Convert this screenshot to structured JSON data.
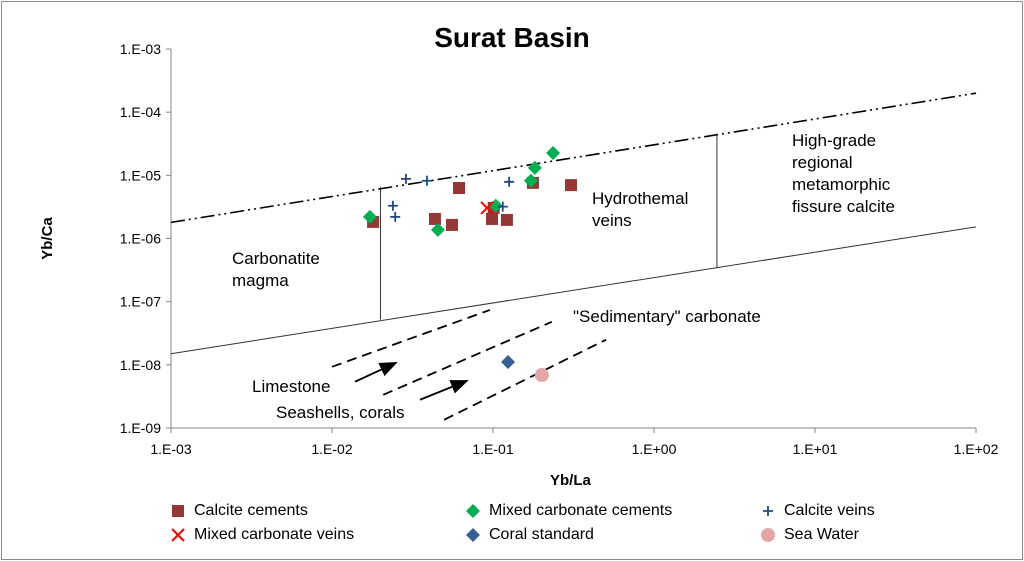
{
  "chart_data": {
    "type": "scatter",
    "title": "Surat Basin",
    "xlabel": "Yb/La",
    "ylabel": "Yb/Ca",
    "x_scale": "log",
    "y_scale": "log",
    "xlim": [
      0.001,
      100
    ],
    "ylim": [
      1e-09,
      0.001
    ],
    "x_ticks": [
      "1.E-03",
      "1.E-02",
      "1.E-01",
      "1.E+00",
      "1.E+01",
      "1.E+02"
    ],
    "y_ticks": [
      "1.E-09",
      "1.E-08",
      "1.E-07",
      "1.E-06",
      "1.E-05",
      "1.E-04",
      "1.E-03"
    ],
    "grid": false,
    "legend_position": "bottom",
    "series": [
      {
        "name": "Calcite cements",
        "marker": "square",
        "color": "#953735",
        "points": [
          [
            0.018,
            1.83e-06
          ],
          [
            0.0436,
            2.04e-06
          ],
          [
            0.0556,
            1.64e-06
          ],
          [
            0.0615,
            6.3e-06
          ],
          [
            0.0986,
            2.04e-06
          ],
          [
            0.101,
            3.05e-06
          ],
          [
            0.122,
            1.97e-06
          ],
          [
            0.177,
            7.6e-06
          ],
          [
            0.305,
            7e-06
          ]
        ]
      },
      {
        "name": "Mixed carbonate cements",
        "marker": "diamond",
        "color": "#00B050",
        "points": [
          [
            0.0172,
            2.2e-06
          ],
          [
            0.0455,
            1.37e-06
          ],
          [
            0.104,
            3.3e-06
          ],
          [
            0.172,
            8.2e-06
          ],
          [
            0.182,
            1.31e-05
          ],
          [
            0.236,
            2.26e-05
          ]
        ]
      },
      {
        "name": "Calcite veins",
        "marker": "plus",
        "color": "#1F497D",
        "points": [
          [
            0.0288,
            8.8e-06
          ],
          [
            0.0389,
            8.2e-06
          ],
          [
            0.0239,
            3.3e-06
          ],
          [
            0.0247,
            2.2e-06
          ],
          [
            0.126,
            7.9e-06
          ],
          [
            0.115,
            3.2e-06
          ]
        ]
      },
      {
        "name": "Mixed carbonate veins",
        "marker": "x",
        "color": "#FF0000",
        "points": [
          [
            0.0918,
            3.05e-06
          ]
        ]
      },
      {
        "name": "Coral standard",
        "marker": "diamond",
        "color": "#376092",
        "points": [
          [
            0.124,
            1.11e-08
          ]
        ]
      },
      {
        "name": "Sea Water",
        "marker": "circle",
        "color": "#E6A5A5",
        "points": [
          [
            0.201,
            6.9e-09
          ]
        ]
      }
    ],
    "reference_lines": [
      {
        "style": "dash-dot",
        "points": [
          [
            0.001,
            1.8e-06
          ],
          [
            100,
            0.0002
          ]
        ]
      },
      {
        "style": "solid",
        "points": [
          [
            0.001,
            1.5e-08
          ],
          [
            100,
            1.53e-06
          ]
        ]
      },
      {
        "style": "solid",
        "points": [
          [
            0.02,
            5.2e-08
          ],
          [
            0.02,
            6.5e-06
          ]
        ]
      },
      {
        "style": "solid",
        "points": [
          [
            2.46,
            3.4e-07
          ],
          [
            2.46,
            4.4e-05
          ]
        ]
      },
      {
        "style": "dashed",
        "points": [
          [
            0.01,
            9.3e-09
          ],
          [
            0.0957,
            7.4e-08
          ]
        ]
      },
      {
        "style": "dashed",
        "points": [
          [
            0.0208,
            3.35e-09
          ],
          [
            0.232,
            4.8e-08
          ]
        ]
      },
      {
        "style": "dashed",
        "points": [
          [
            0.0497,
            1.35e-09
          ],
          [
            0.504,
            2.5e-08
          ]
        ]
      },
      {
        "style": "arrow",
        "points": [
          [
            0.0139,
            5.4e-09
          ],
          [
            0.025,
            1.08e-08
          ]
        ]
      },
      {
        "style": "arrow",
        "points": [
          [
            0.0352,
            2.8e-09
          ],
          [
            0.069,
            5.6e-09
          ]
        ]
      }
    ],
    "annotations": {
      "carbonatite": [
        "Carbonatite",
        "magma"
      ],
      "hydrothermal": [
        "Hydrothemal",
        "veins"
      ],
      "metamorphic": [
        "High-grade",
        "regional",
        "metamorphic",
        "fissure calcite"
      ],
      "sedimentary": "\"Sedimentary\" carbonate",
      "limestone": "Limestone",
      "seashells": "Seashells, corals"
    }
  }
}
